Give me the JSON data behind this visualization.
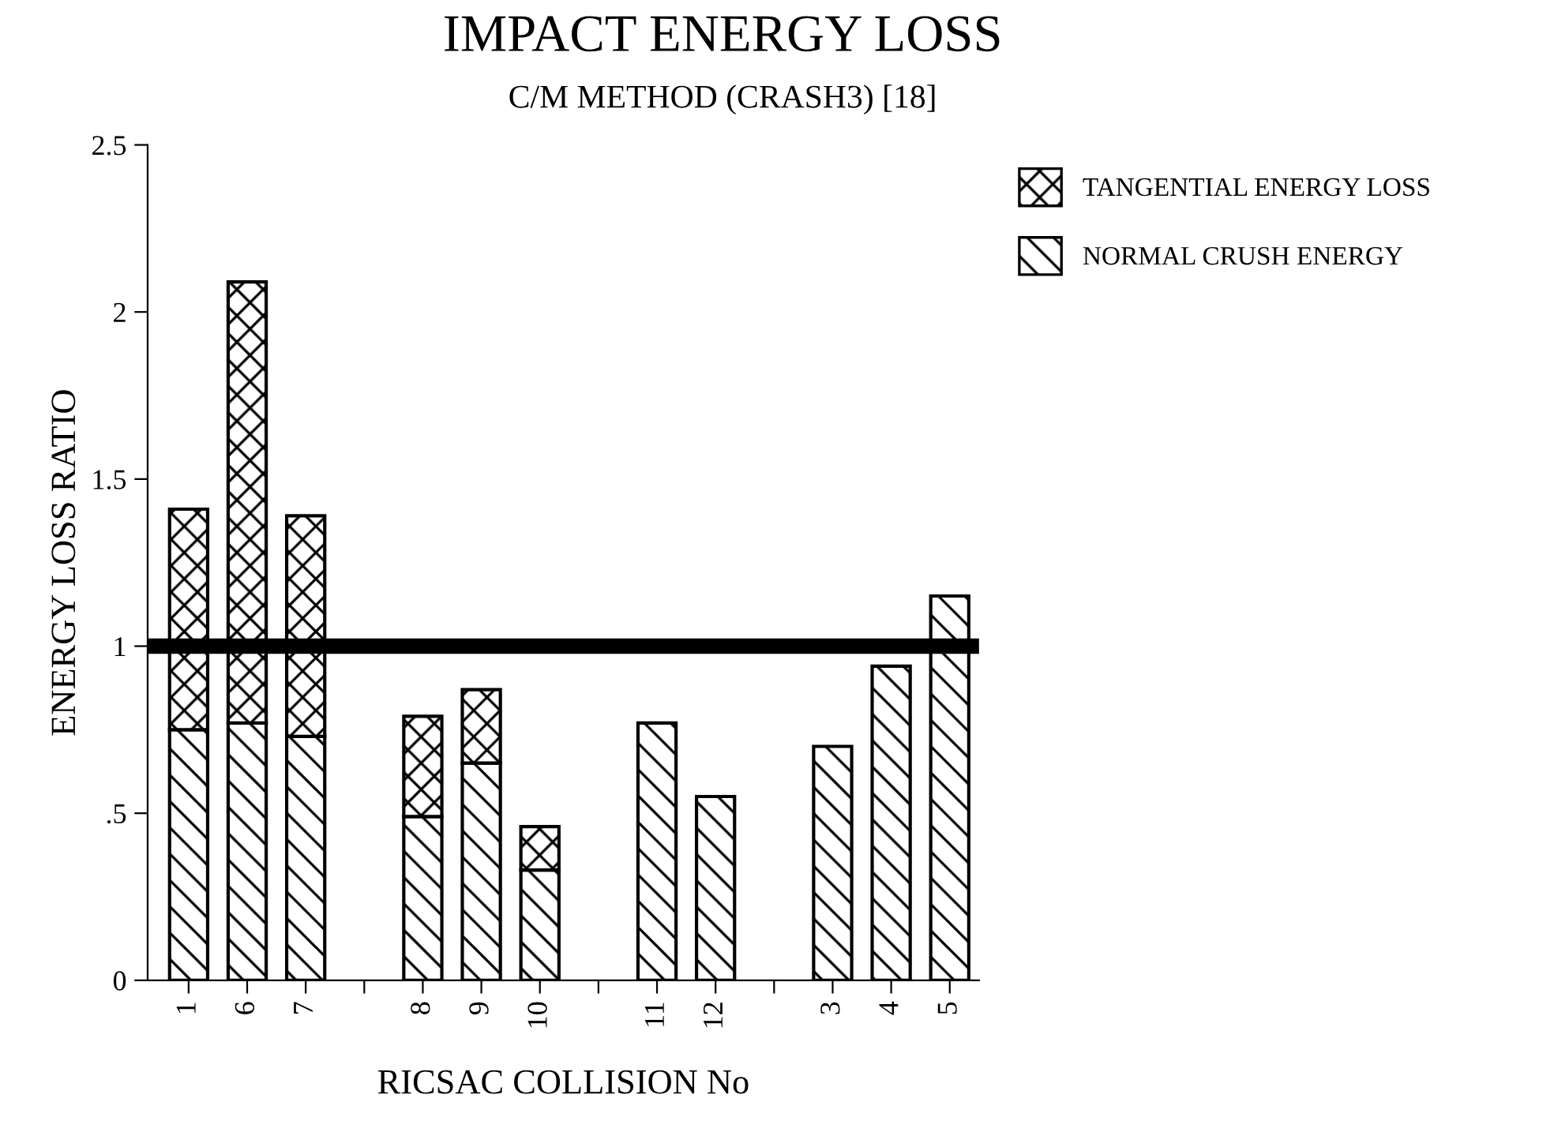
{
  "chart_data": {
    "type": "bar",
    "stacked": true,
    "title": "IMPACT ENERGY LOSS",
    "subtitle": "C/M METHOD (CRASH3) [18]",
    "xlabel": "RICSAC COLLISION No",
    "ylabel": "ENERGY LOSS RATIO",
    "categories": [
      "1",
      "6",
      "7",
      null,
      "8",
      "9",
      "10",
      null,
      "11",
      "12",
      null,
      "3",
      "4",
      "5"
    ],
    "series": [
      {
        "name": "NORMAL CRUSH ENERGY",
        "color": "#000000",
        "values": [
          0.75,
          0.77,
          0.73,
          null,
          0.49,
          0.65,
          0.33,
          null,
          0.77,
          0.55,
          null,
          0.7,
          0.94,
          1.15
        ]
      },
      {
        "name": "TANGENTIAL ENERGY LOSS",
        "color": "#000000",
        "values": [
          0.66,
          1.32,
          0.66,
          null,
          0.3,
          0.22,
          0.13,
          null,
          null,
          null,
          null,
          null,
          null,
          null
        ]
      }
    ],
    "ylim": [
      0,
      2.5
    ],
    "yticks": [
      0,
      {
        "value": 0.5,
        "label": ".5"
      },
      1,
      1.5,
      2,
      2.5
    ],
    "ref_lines": [
      {
        "axis": "y",
        "value": 1,
        "color": "#000000"
      }
    ],
    "legend": "top right",
    "grid": false
  }
}
